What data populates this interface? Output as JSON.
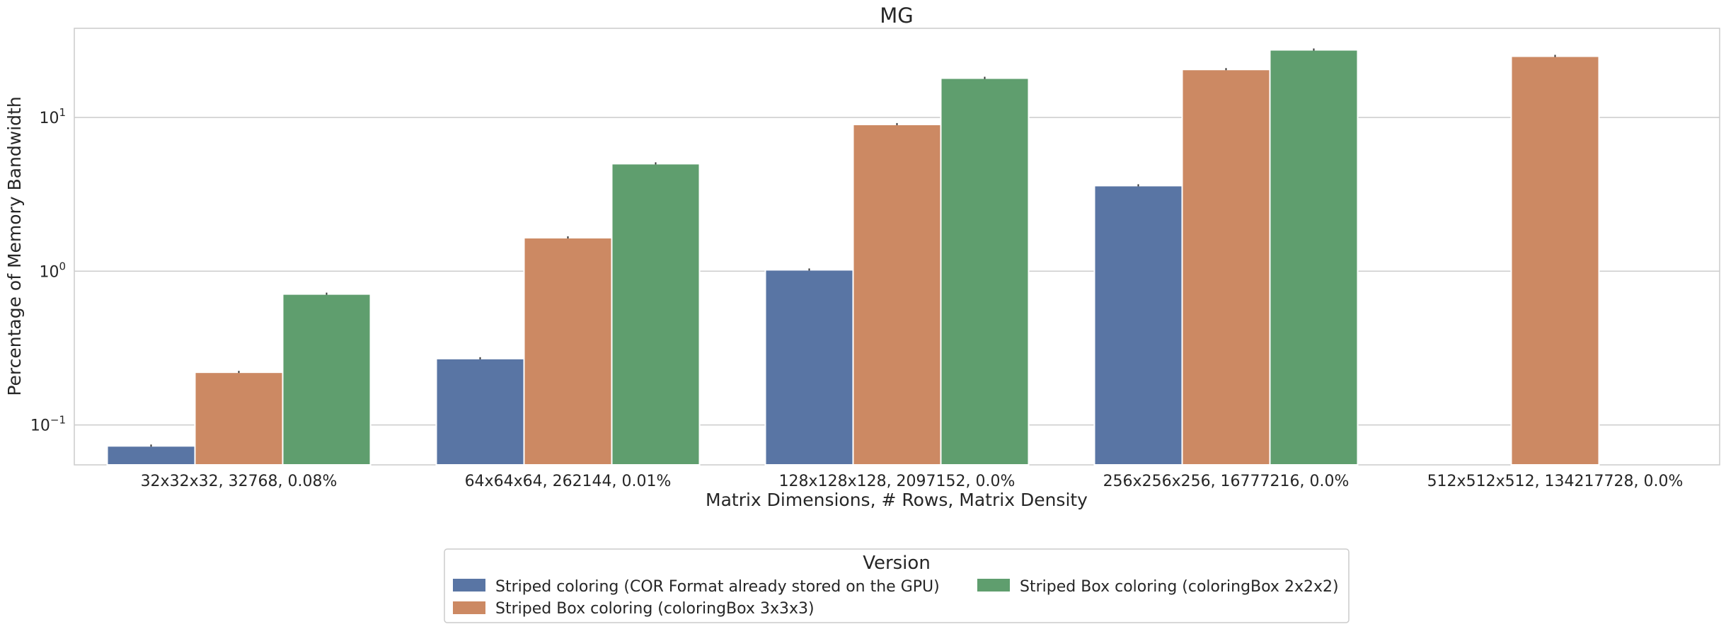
{
  "chart_data": {
    "type": "bar",
    "title": "MG",
    "xlabel": "Matrix Dimensions, # Rows, Matrix Density",
    "ylabel": "Percentage of Memory Bandwidth",
    "yscale": "log",
    "ylim": [
      0.055,
      38
    ],
    "yticks": [
      {
        "value": 0.1,
        "base": "10",
        "exp": "−1"
      },
      {
        "value": 1,
        "base": "10",
        "exp": "0"
      },
      {
        "value": 10,
        "base": "10",
        "exp": "1"
      }
    ],
    "grid": true,
    "categories": [
      "32x32x32, 32768, 0.08%",
      "64x64x64, 262144, 0.01%",
      "128x128x128, 2097152, 0.0%",
      "256x256x256, 16777216, 0.0%",
      "512x512x512, 134217728, 0.0%"
    ],
    "series": [
      {
        "name": "Striped coloring (COR Format already stored on the GPU)",
        "color": "#5975a4",
        "values": [
          0.073,
          0.27,
          1.02,
          3.6,
          null
        ]
      },
      {
        "name": "Striped Box coloring (coloringBox 3x3x3)",
        "color": "#cc8963",
        "values": [
          0.22,
          1.65,
          9.0,
          20.5,
          25.0
        ]
      },
      {
        "name": "Striped Box coloring (coloringBox 2x2x2)",
        "color": "#5f9e6e",
        "values": [
          0.71,
          5.0,
          18.0,
          27.5,
          null
        ]
      }
    ],
    "legend": {
      "title": "Version",
      "placement": "bottom-center"
    }
  }
}
